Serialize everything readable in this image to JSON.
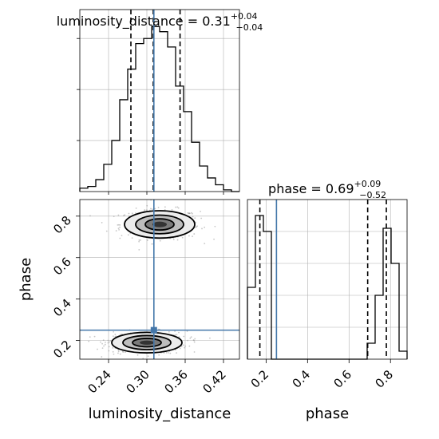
{
  "chart_data": [
    {
      "type": "histogram",
      "panel": "luminosity_distance-marginal",
      "title_param": "luminosity_distance",
      "title_value": "0.31",
      "title_plus": "+0.04",
      "title_minus": "−0.04",
      "xlim": [
        0.195,
        0.445
      ],
      "quantiles": [
        0.275,
        0.31,
        0.352
      ],
      "truth": 0.311,
      "bin_edges": [
        0.195,
        0.2075,
        0.22,
        0.2325,
        0.245,
        0.2575,
        0.27,
        0.2825,
        0.295,
        0.3075,
        0.32,
        0.3325,
        0.345,
        0.3575,
        0.37,
        0.3825,
        0.395,
        0.4075,
        0.42,
        0.4325,
        0.445
      ],
      "counts": [
        0.02,
        0.03,
        0.07,
        0.16,
        0.3,
        0.54,
        0.72,
        0.87,
        0.9,
        0.97,
        0.94,
        0.85,
        0.62,
        0.47,
        0.29,
        0.15,
        0.08,
        0.04,
        0.01,
        0.0
      ],
      "grid": true
    },
    {
      "type": "contour",
      "panel": "phase-vs-luminosity_distance",
      "xlim": [
        0.195,
        0.445
      ],
      "ylim": [
        0.11,
        0.88
      ],
      "xticks": [
        "0.24",
        "0.30",
        "0.36",
        "0.42"
      ],
      "yticks": [
        "0.2",
        "0.4",
        "0.6",
        "0.8"
      ],
      "xlabel": "luminosity_distance",
      "ylabel": "phase",
      "truth": {
        "x": 0.311,
        "y": 0.25
      },
      "modes": [
        {
          "x": 0.32,
          "y": 0.76,
          "sx": 0.025,
          "sy": 0.04
        },
        {
          "x": 0.3,
          "y": 0.19,
          "sx": 0.025,
          "sy": 0.03
        }
      ],
      "grid": true
    },
    {
      "type": "histogram",
      "panel": "phase-marginal",
      "title_param": "phase",
      "title_value": "0.69",
      "title_plus": "+0.09",
      "title_minus": "−0.52",
      "xlim": [
        0.11,
        0.88
      ],
      "xticks": [
        "0.2",
        "0.4",
        "0.6",
        "0.8"
      ],
      "xlabel": "phase",
      "quantiles": [
        0.17,
        0.69,
        0.78
      ],
      "truth": 0.25,
      "bin_edges": [
        0.11,
        0.1485,
        0.187,
        0.2255,
        0.264,
        0.3025,
        0.341,
        0.3795,
        0.418,
        0.4565,
        0.495,
        0.5335,
        0.572,
        0.6105,
        0.649,
        0.6875,
        0.726,
        0.7645,
        0.803,
        0.8415,
        0.88
      ],
      "counts": [
        0.45,
        0.9,
        0.8,
        0.0,
        0.0,
        0.0,
        0.0,
        0.0,
        0.0,
        0.0,
        0.0,
        0.0,
        0.0,
        0.0,
        0.0,
        0.1,
        0.4,
        0.82,
        0.6,
        0.05
      ],
      "grid": true
    }
  ],
  "colors": {
    "truth": "#4477aa",
    "line": "#000000",
    "grid": "#b0b0b0",
    "scatter": "#999999"
  }
}
